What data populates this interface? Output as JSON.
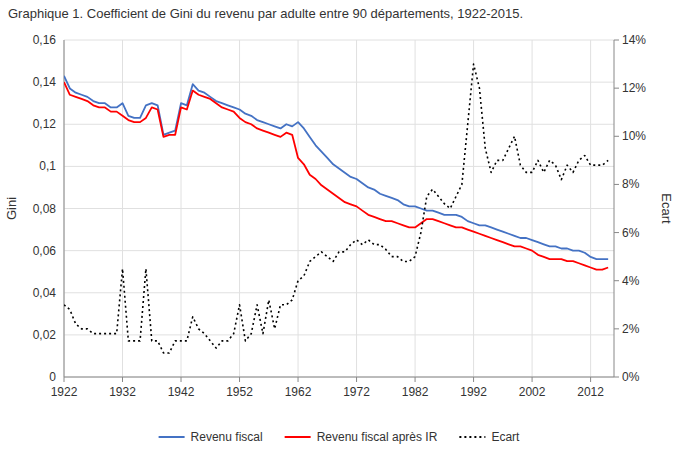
{
  "chart_data": {
    "type": "line",
    "title": "Graphique 1. Coefficient de Gini du revenu par adulte entre 90 départements, 1922-2015.",
    "ylabel": "Gini",
    "y2label": "Ecart",
    "x": [
      1922,
      1923,
      1924,
      1925,
      1926,
      1927,
      1928,
      1929,
      1930,
      1931,
      1932,
      1933,
      1934,
      1935,
      1936,
      1937,
      1938,
      1939,
      1940,
      1941,
      1942,
      1943,
      1944,
      1945,
      1946,
      1947,
      1948,
      1949,
      1950,
      1951,
      1952,
      1953,
      1954,
      1955,
      1956,
      1957,
      1958,
      1959,
      1960,
      1961,
      1962,
      1963,
      1964,
      1965,
      1966,
      1967,
      1968,
      1969,
      1970,
      1971,
      1972,
      1973,
      1974,
      1975,
      1976,
      1977,
      1978,
      1979,
      1980,
      1981,
      1982,
      1983,
      1984,
      1985,
      1986,
      1987,
      1988,
      1989,
      1990,
      1991,
      1992,
      1993,
      1994,
      1995,
      1996,
      1997,
      1998,
      1999,
      2000,
      2001,
      2002,
      2003,
      2004,
      2005,
      2006,
      2007,
      2008,
      2009,
      2010,
      2011,
      2012,
      2013,
      2014,
      2015
    ],
    "series": [
      {
        "name": "Revenu fiscal",
        "color": "#4472C4",
        "line_style": "solid",
        "values": [
          0.143,
          0.137,
          0.135,
          0.134,
          0.133,
          0.131,
          0.13,
          0.13,
          0.128,
          0.128,
          0.13,
          0.124,
          0.123,
          0.123,
          0.129,
          0.13,
          0.129,
          0.115,
          0.116,
          0.117,
          0.13,
          0.129,
          0.139,
          0.136,
          0.135,
          0.133,
          0.131,
          0.13,
          0.129,
          0.128,
          0.127,
          0.125,
          0.124,
          0.122,
          0.121,
          0.12,
          0.119,
          0.118,
          0.12,
          0.119,
          0.121,
          0.118,
          0.114,
          0.11,
          0.107,
          0.104,
          0.101,
          0.099,
          0.097,
          0.095,
          0.094,
          0.092,
          0.09,
          0.089,
          0.087,
          0.086,
          0.085,
          0.084,
          0.082,
          0.081,
          0.081,
          0.08,
          0.079,
          0.079,
          0.078,
          0.077,
          0.077,
          0.077,
          0.076,
          0.074,
          0.073,
          0.072,
          0.072,
          0.071,
          0.07,
          0.069,
          0.068,
          0.067,
          0.066,
          0.066,
          0.065,
          0.064,
          0.063,
          0.062,
          0.062,
          0.061,
          0.061,
          0.06,
          0.06,
          0.059,
          0.057,
          0.056,
          0.056,
          0.056
        ]
      },
      {
        "name": "Revenu fiscal après IR",
        "color": "#FF0000",
        "line_style": "solid",
        "values": [
          0.14,
          0.134,
          0.133,
          0.132,
          0.131,
          0.129,
          0.128,
          0.128,
          0.126,
          0.126,
          0.124,
          0.122,
          0.121,
          0.121,
          0.123,
          0.128,
          0.127,
          0.114,
          0.115,
          0.115,
          0.128,
          0.127,
          0.136,
          0.134,
          0.133,
          0.132,
          0.13,
          0.128,
          0.127,
          0.126,
          0.123,
          0.121,
          0.12,
          0.118,
          0.117,
          0.116,
          0.115,
          0.114,
          0.116,
          0.115,
          0.104,
          0.101,
          0.096,
          0.094,
          0.091,
          0.089,
          0.087,
          0.085,
          0.083,
          0.082,
          0.081,
          0.079,
          0.077,
          0.076,
          0.075,
          0.074,
          0.074,
          0.073,
          0.072,
          0.071,
          0.071,
          0.073,
          0.075,
          0.075,
          0.074,
          0.073,
          0.072,
          0.071,
          0.071,
          0.07,
          0.069,
          0.068,
          0.067,
          0.066,
          0.065,
          0.064,
          0.063,
          0.062,
          0.062,
          0.061,
          0.06,
          0.058,
          0.057,
          0.056,
          0.056,
          0.056,
          0.055,
          0.055,
          0.054,
          0.053,
          0.052,
          0.051,
          0.051,
          0.052
        ]
      },
      {
        "name": "Ecart",
        "color": "#000000",
        "line_style": "dotted",
        "axis": "y2",
        "values": [
          0.03,
          0.028,
          0.022,
          0.02,
          0.02,
          0.018,
          0.018,
          0.018,
          0.018,
          0.018,
          0.045,
          0.015,
          0.015,
          0.015,
          0.045,
          0.015,
          0.015,
          0.01,
          0.01,
          0.015,
          0.015,
          0.015,
          0.025,
          0.02,
          0.018,
          0.015,
          0.012,
          0.015,
          0.015,
          0.018,
          0.03,
          0.015,
          0.018,
          0.03,
          0.018,
          0.032,
          0.02,
          0.03,
          0.03,
          0.032,
          0.04,
          0.042,
          0.048,
          0.05,
          0.052,
          0.05,
          0.048,
          0.052,
          0.052,
          0.055,
          0.057,
          0.055,
          0.057,
          0.055,
          0.055,
          0.053,
          0.05,
          0.05,
          0.048,
          0.048,
          0.05,
          0.06,
          0.075,
          0.078,
          0.075,
          0.072,
          0.07,
          0.075,
          0.08,
          0.105,
          0.13,
          0.12,
          0.095,
          0.085,
          0.09,
          0.09,
          0.095,
          0.1,
          0.088,
          0.085,
          0.085,
          0.09,
          0.085,
          0.09,
          0.088,
          0.082,
          0.088,
          0.085,
          0.09,
          0.092,
          0.088,
          0.088,
          0.088,
          0.09
        ]
      }
    ],
    "xlim": [
      1922,
      2016
    ],
    "xticks": [
      1922,
      1932,
      1942,
      1952,
      1962,
      1972,
      1982,
      1992,
      2002,
      2012
    ],
    "ylim": [
      0,
      0.16
    ],
    "yticks": [
      0,
      {
        "value": 0.02,
        "label": "0,02"
      },
      {
        "value": 0.04,
        "label": "0,04"
      },
      {
        "value": 0.06,
        "label": "0,06"
      },
      {
        "value": 0.08,
        "label": "0,08"
      },
      {
        "value": 0.1,
        "label": "0,1"
      },
      {
        "value": 0.12,
        "label": "0,12"
      },
      {
        "value": 0.14,
        "label": "0,14"
      },
      {
        "value": 0.16,
        "label": "0,16"
      }
    ],
    "y2lim": [
      0,
      0.14
    ],
    "y2ticks": [
      {
        "value": 0,
        "label": "0%"
      },
      {
        "value": 0.02,
        "label": "2%"
      },
      {
        "value": 0.04,
        "label": "4%"
      },
      {
        "value": 0.06,
        "label": "6%"
      },
      {
        "value": 0.08,
        "label": "8%"
      },
      {
        "value": 0.1,
        "label": "10%"
      },
      {
        "value": 0.12,
        "label": "12%"
      },
      {
        "value": 0.14,
        "label": "14%"
      }
    ],
    "grid": true,
    "legend": "bottom"
  }
}
